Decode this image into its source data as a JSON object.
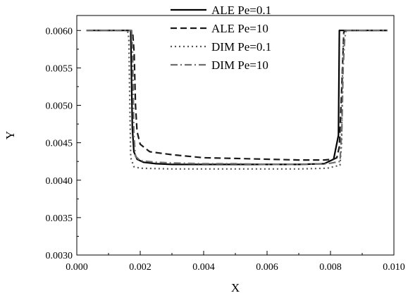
{
  "chart_data": {
    "type": "line",
    "title": "",
    "xlabel": "X",
    "ylabel": "Y",
    "xlim": [
      0.0,
      0.01
    ],
    "ylim": [
      0.003,
      0.0062
    ],
    "x_ticks": [
      "0.000",
      "0.002",
      "0.004",
      "0.006",
      "0.008",
      "0.010"
    ],
    "y_ticks": [
      "0.0030",
      "0.0035",
      "0.0040",
      "0.0045",
      "0.0050",
      "0.0055",
      "0.0060"
    ],
    "grid": false,
    "legend": "top-right",
    "series": [
      {
        "name": "ALE Pe=0.1",
        "style": "solid",
        "color": "#000000",
        "x": [
          0.0003,
          0.0017,
          0.00172,
          0.00175,
          0.0018,
          0.0019,
          0.0021,
          0.0025,
          0.003,
          0.004,
          0.005,
          0.006,
          0.007,
          0.0078,
          0.0081,
          0.00825,
          0.00828,
          0.00832,
          0.0085,
          0.0098
        ],
        "y": [
          0.006,
          0.006,
          0.0055,
          0.0047,
          0.00438,
          0.00428,
          0.00424,
          0.00422,
          0.00421,
          0.00421,
          0.00421,
          0.00421,
          0.00421,
          0.00422,
          0.00428,
          0.0046,
          0.006,
          0.006,
          0.006,
          0.006
        ]
      },
      {
        "name": "ALE Pe=10",
        "style": "dashed",
        "color": "#1a1a1a",
        "x": [
          0.0003,
          0.0017,
          0.00176,
          0.00181,
          0.00185,
          0.0019,
          0.002,
          0.0023,
          0.003,
          0.004,
          0.005,
          0.006,
          0.007,
          0.0078,
          0.0081,
          0.0082,
          0.00828,
          0.00835,
          0.00842,
          0.0085,
          0.0098
        ],
        "y": [
          0.006,
          0.006,
          0.00598,
          0.0057,
          0.005,
          0.00465,
          0.00448,
          0.00438,
          0.00434,
          0.0043,
          0.00429,
          0.00428,
          0.00427,
          0.00427,
          0.00428,
          0.0043,
          0.00445,
          0.0052,
          0.00598,
          0.006,
          0.006
        ]
      },
      {
        "name": "DIM Pe=0.1",
        "style": "dotted",
        "color": "#555555",
        "x": [
          0.0003,
          0.0016,
          0.00164,
          0.00168,
          0.0017,
          0.0018,
          0.002,
          0.003,
          0.004,
          0.005,
          0.006,
          0.007,
          0.0079,
          0.0083,
          0.00835,
          0.00838,
          0.00842,
          0.0085,
          0.0098
        ],
        "y": [
          0.006,
          0.006,
          0.0059,
          0.0048,
          0.0043,
          0.00418,
          0.00416,
          0.00415,
          0.00415,
          0.00415,
          0.00415,
          0.00415,
          0.00416,
          0.0042,
          0.0045,
          0.0055,
          0.006,
          0.006,
          0.006
        ]
      },
      {
        "name": "DIM Pe=10",
        "style": "dashdot",
        "color": "#6e6e6e",
        "x": [
          0.0003,
          0.00173,
          0.00176,
          0.0018,
          0.00185,
          0.002,
          0.0025,
          0.003,
          0.004,
          0.005,
          0.006,
          0.007,
          0.0079,
          0.0083,
          0.00836,
          0.0084,
          0.00845,
          0.0085,
          0.0098
        ],
        "y": [
          0.006,
          0.006,
          0.0057,
          0.0046,
          0.00432,
          0.00426,
          0.00424,
          0.00423,
          0.00422,
          0.00422,
          0.00421,
          0.00421,
          0.00422,
          0.00425,
          0.0047,
          0.0055,
          0.0059,
          0.006,
          0.006
        ]
      }
    ]
  }
}
